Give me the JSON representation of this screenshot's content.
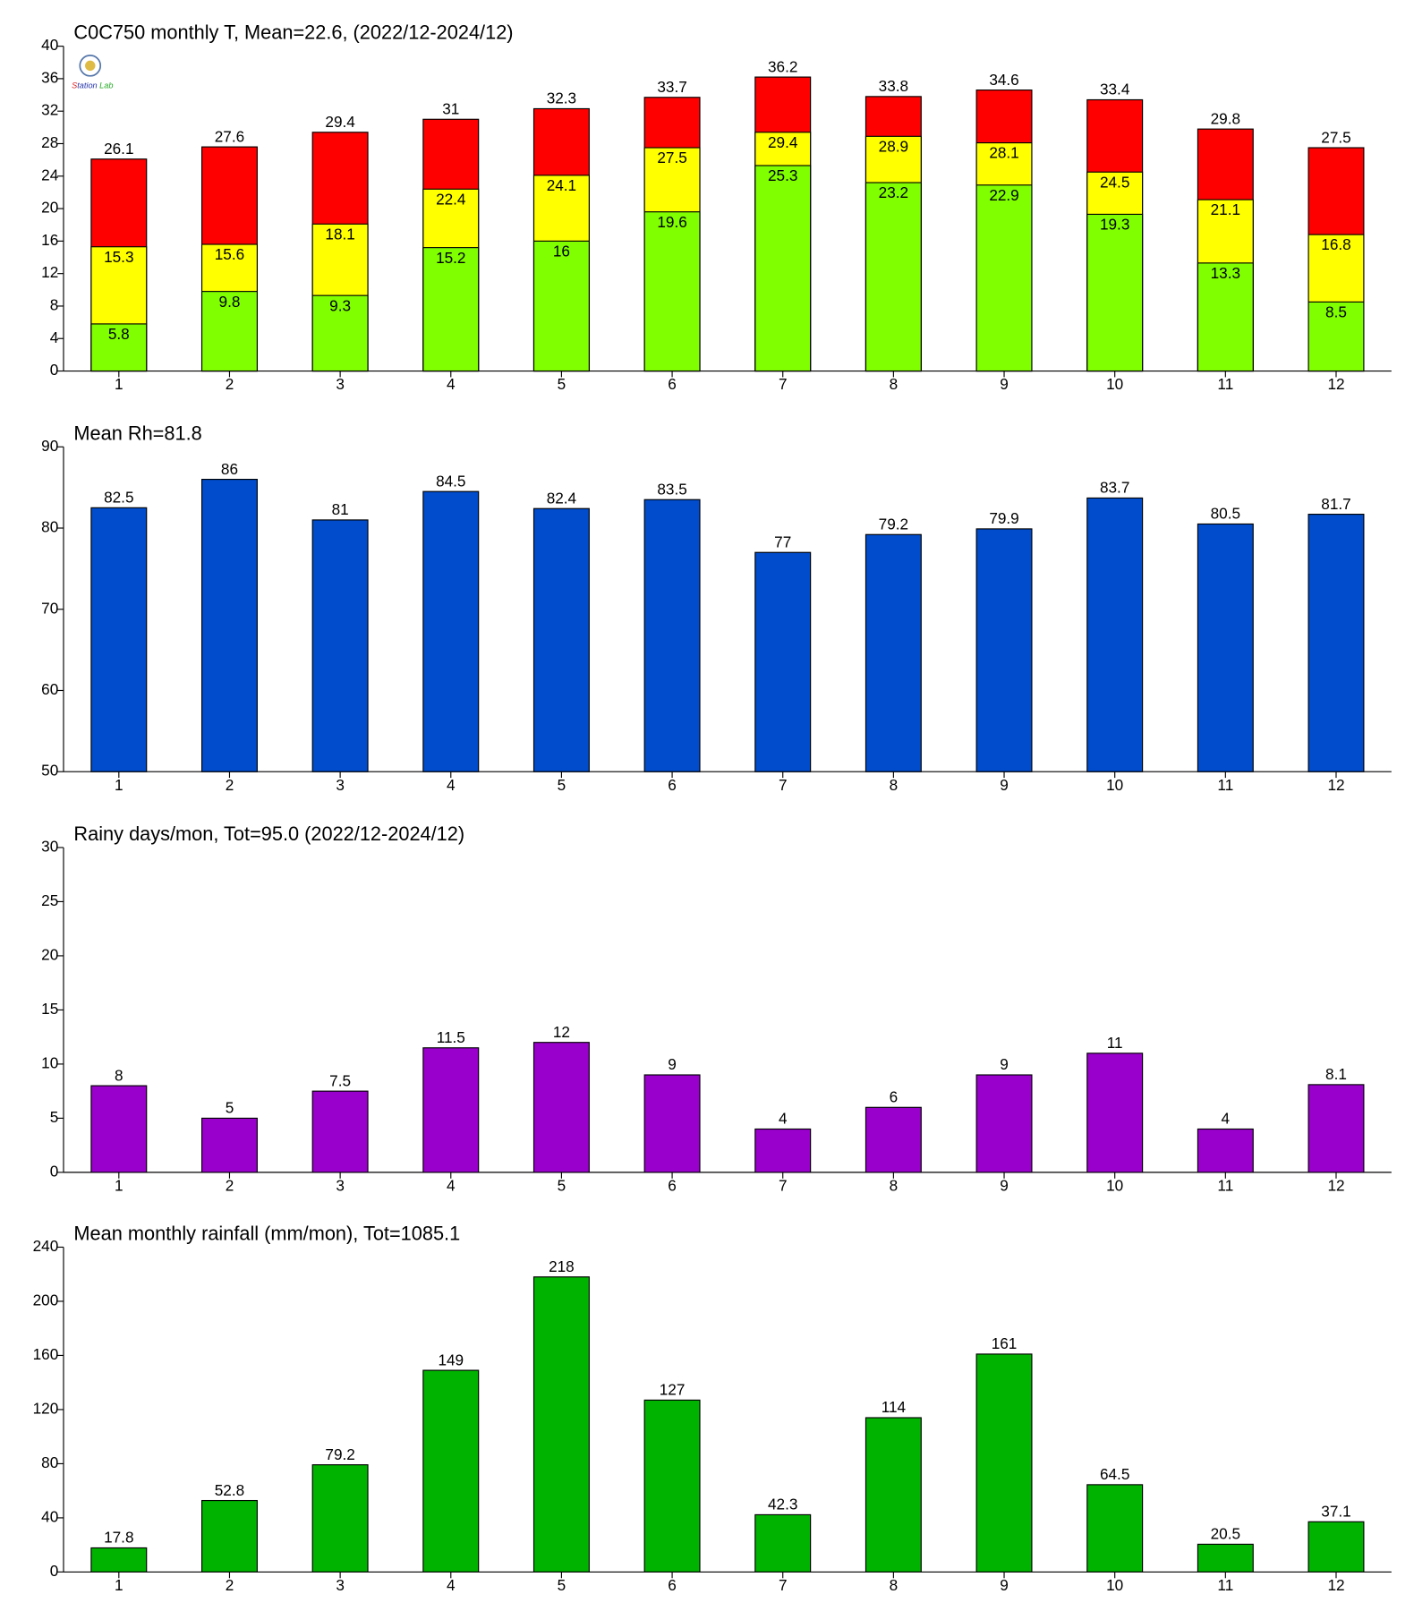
{
  "chart_data": [
    {
      "type": "bar",
      "title": "C0C750 monthly T, Mean=22.6, (2022/12-2024/12)",
      "x": [
        1,
        2,
        3,
        4,
        5,
        6,
        7,
        8,
        9,
        10,
        11,
        12
      ],
      "xlim": [
        0.5,
        12.5
      ],
      "series": [
        {
          "color": "#ff0000",
          "values": [
            26.1,
            27.6,
            29.4,
            31,
            32.3,
            33.7,
            36.2,
            33.8,
            34.6,
            33.4,
            29.8,
            27.5
          ]
        },
        {
          "color": "#ffff00",
          "values": [
            15.3,
            15.6,
            18.1,
            22.4,
            24.1,
            27.5,
            29.4,
            28.9,
            28.1,
            24.5,
            21.1,
            16.8
          ]
        },
        {
          "color": "#80ff00",
          "values": [
            5.8,
            9.8,
            9.3,
            15.2,
            16,
            19.6,
            25.3,
            23.2,
            22.9,
            19.3,
            13.3,
            8.5
          ]
        }
      ],
      "ylim": [
        0,
        40
      ],
      "yticks": [
        0,
        4,
        8,
        12,
        16,
        20,
        24,
        28,
        32,
        36,
        40
      ]
    },
    {
      "type": "bar",
      "title": "Mean Rh=81.8",
      "x": [
        1,
        2,
        3,
        4,
        5,
        6,
        7,
        8,
        9,
        10,
        11,
        12
      ],
      "xlim": [
        0.5,
        12.5
      ],
      "series": [
        {
          "color": "#004ccc",
          "values": [
            82.5,
            86,
            81,
            84.5,
            82.4,
            83.5,
            77,
            79.2,
            79.9,
            83.7,
            80.5,
            81.7
          ]
        }
      ],
      "ylim": [
        50,
        90
      ],
      "yticks": [
        50,
        60,
        70,
        80,
        90
      ]
    },
    {
      "type": "bar",
      "title": "Rainy days/mon, Tot=95.0 (2022/12-2024/12)",
      "x": [
        1,
        2,
        3,
        4,
        5,
        6,
        7,
        8,
        9,
        10,
        11,
        12
      ],
      "xlim": [
        0.5,
        12.5
      ],
      "series": [
        {
          "color": "#9900cc",
          "values": [
            8,
            5,
            7.5,
            11.5,
            12,
            9,
            4,
            6,
            9,
            11,
            4,
            8.1
          ]
        }
      ],
      "ylim": [
        0,
        30
      ],
      "yticks": [
        0,
        5,
        10,
        15,
        20,
        25,
        30
      ]
    },
    {
      "type": "bar",
      "title": "Mean monthly rainfall (mm/mon), Tot=1085.1",
      "x": [
        1,
        2,
        3,
        4,
        5,
        6,
        7,
        8,
        9,
        10,
        11,
        12
      ],
      "xlim": [
        0.5,
        12.5
      ],
      "series": [
        {
          "color": "#00b300",
          "values": [
            17.8,
            52.8,
            79.2,
            149,
            218,
            127,
            42.3,
            114,
            161,
            64.5,
            20.5,
            37.1
          ]
        }
      ],
      "ylim": [
        0,
        240
      ],
      "yticks": [
        0,
        40,
        80,
        120,
        160,
        200,
        240
      ]
    }
  ]
}
